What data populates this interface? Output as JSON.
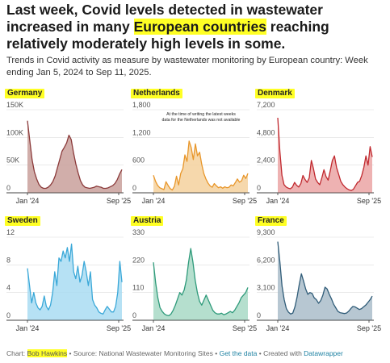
{
  "title": {
    "part1": "Last week, Covid levels detected in wastewater increased in many ",
    "highlight": "European countries",
    "part2": " reaching relatively moderately high levels in some."
  },
  "subtitle": "Trends in Covid activity as measure by wastewater monitoring by European country: Week ending Jan 5, 2024 to Sep 11, 2025.",
  "footer": {
    "chart_label": "Chart: ",
    "author": "Bob Hawkins",
    "source": " • Source: National Wastewater Monitoring Sites • ",
    "get_data": "Get the data",
    "created": " • Created with ",
    "tool": "Datawrapper"
  },
  "chart_data": [
    {
      "type": "area",
      "country": "Germany",
      "color": "#8b3a3a",
      "fill": "#c9a09b",
      "yticks": [
        0,
        50000,
        100000,
        150000
      ],
      "ytick_labels": [
        "0",
        "50K",
        "100K",
        "150K"
      ],
      "ylim": [
        0,
        150000
      ],
      "xtick_labels": [
        "Jan '24",
        "Sep '25"
      ],
      "values": [
        130000,
        95000,
        60000,
        38000,
        25000,
        15000,
        10000,
        8000,
        8000,
        10000,
        14000,
        20000,
        30000,
        45000,
        60000,
        75000,
        82000,
        90000,
        104000,
        96000,
        72000,
        52000,
        36000,
        22000,
        14000,
        10000,
        9000,
        8000,
        9000,
        10000,
        12000,
        11000,
        10000,
        8000,
        8000,
        9000,
        11000,
        13000,
        17000,
        24000,
        34000,
        42000
      ]
    },
    {
      "type": "area",
      "country": "Netherlands",
      "color": "#e8962a",
      "fill": "#f5d19e",
      "yticks": [
        0,
        600,
        1200,
        1800
      ],
      "ytick_labels": [
        "0",
        "600",
        "1,200",
        "1,800"
      ],
      "ylim": [
        0,
        1800
      ],
      "xtick_labels": [
        "Jan '24",
        "Sep '25"
      ],
      "annotation": "At the time of writing the latest weeks data for the Netherlands was not available",
      "values": [
        380,
        250,
        160,
        110,
        90,
        70,
        240,
        160,
        90,
        60,
        140,
        360,
        170,
        420,
        520,
        820,
        680,
        1120,
        980,
        720,
        1060,
        800,
        880,
        620,
        420,
        300,
        210,
        150,
        120,
        200,
        150,
        110,
        130,
        100,
        130,
        110,
        120,
        170,
        150,
        220,
        300,
        230,
        260,
        380,
        310,
        420
      ]
    },
    {
      "type": "area",
      "country": "Denmark",
      "color": "#c0282e",
      "fill": "#eba5a5",
      "yticks": [
        0,
        2400,
        4800,
        7200
      ],
      "ytick_labels": [
        "0",
        "2,400",
        "4,800",
        "7,200"
      ],
      "ylim": [
        0,
        7200
      ],
      "xtick_labels": [
        "Jan '24",
        "Sep '25"
      ],
      "values": [
        6500,
        3600,
        1500,
        700,
        500,
        400,
        350,
        500,
        900,
        650,
        500,
        800,
        1500,
        1150,
        900,
        1300,
        2800,
        2100,
        1200,
        900,
        700,
        1300,
        2000,
        1400,
        1100,
        1900,
        2800,
        3200,
        2200,
        1600,
        1000,
        700,
        500,
        350,
        250,
        200,
        300,
        600,
        900,
        1000,
        1500,
        2200,
        3200,
        2400,
        4000,
        3100
      ]
    },
    {
      "type": "area",
      "country": "Sweden",
      "color": "#3aa8d8",
      "fill": "#a9dcf2",
      "yticks": [
        0,
        4,
        8,
        12
      ],
      "ytick_labels": [
        "0",
        "4",
        "8",
        "12"
      ],
      "ylim": [
        0,
        12
      ],
      "xtick_labels": [
        "Jan '24",
        "Sep '25"
      ],
      "values": [
        7.5,
        5,
        2.5,
        4,
        2.5,
        1.8,
        1.5,
        2,
        3.5,
        2,
        1.5,
        2.2,
        4,
        7,
        5,
        9,
        8.5,
        10,
        9,
        10.5,
        8.5,
        11,
        7,
        6,
        7.8,
        5.5,
        6.5,
        8.5,
        7,
        5,
        7,
        3,
        2.2,
        1.8,
        1.2,
        1,
        0.9,
        1.5,
        2,
        1.6,
        1.2,
        1.2,
        2,
        4,
        8.5,
        5.5
      ]
    },
    {
      "type": "area",
      "country": "Austria",
      "color": "#2e9a7a",
      "fill": "#a8d9c5",
      "yticks": [
        0,
        110,
        220,
        330
      ],
      "ytick_labels": [
        "0",
        "110",
        "220",
        "330"
      ],
      "ylim": [
        0,
        330
      ],
      "xtick_labels": [
        "Jan '24",
        "Sep '25"
      ],
      "values": [
        230,
        150,
        90,
        50,
        35,
        25,
        20,
        18,
        25,
        40,
        60,
        85,
        110,
        100,
        120,
        160,
        230,
        285,
        230,
        160,
        110,
        75,
        60,
        80,
        100,
        80,
        60,
        40,
        30,
        25,
        25,
        28,
        22,
        25,
        30,
        35,
        30,
        40,
        55,
        70,
        90,
        100,
        110,
        130
      ]
    },
    {
      "type": "area",
      "country": "France",
      "color": "#305c78",
      "fill": "#aabdca",
      "yticks": [
        0,
        3100,
        6200,
        9300
      ],
      "ytick_labels": [
        "0",
        "3,100",
        "6,200",
        "9,300"
      ],
      "ylim": [
        0,
        9300
      ],
      "xtick_labels": [
        "Jan '24",
        "Sep '25"
      ],
      "values": [
        8800,
        6500,
        3800,
        2300,
        1300,
        900,
        700,
        800,
        1500,
        2600,
        4000,
        5200,
        4400,
        3500,
        2900,
        3100,
        3000,
        2500,
        2300,
        1900,
        2200,
        2800,
        3700,
        3500,
        2900,
        2400,
        1800,
        1400,
        1000,
        850,
        800,
        750,
        800,
        1000,
        1300,
        1550,
        1500,
        1350,
        1200,
        1300,
        1500,
        1700,
        2000,
        2300,
        2700
      ]
    }
  ]
}
